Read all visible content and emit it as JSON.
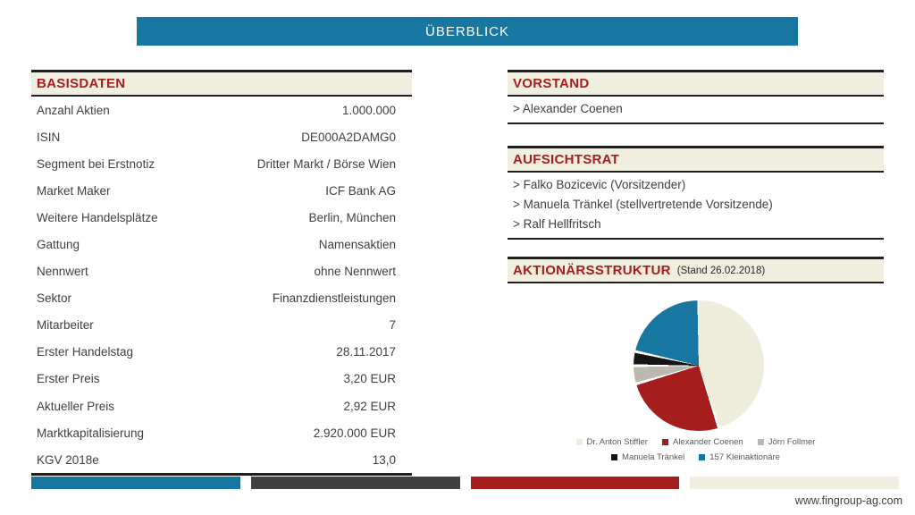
{
  "title": "ÜBERBLICK",
  "colors": {
    "teal": "#1777A0",
    "dark_red": "#A61D1E",
    "cream": "#F0EFDF",
    "dark_gray": "#404040",
    "border": "#1F1F1F",
    "body_text": "#3F3F3F"
  },
  "basisdaten": {
    "header": "BASISDATEN",
    "rows": [
      {
        "label": "Anzahl Aktien",
        "value": "1.000.000"
      },
      {
        "label": "ISIN",
        "value": "DE000A2DAMG0"
      },
      {
        "label": "Segment bei Erstnotiz",
        "value": "Dritter Markt / Börse Wien"
      },
      {
        "label": "Market Maker",
        "value": "ICF Bank AG"
      },
      {
        "label": "Weitere Handelsplätze",
        "value": "Berlin, München"
      },
      {
        "label": "Gattung",
        "value": "Namensaktien"
      },
      {
        "label": "Nennwert",
        "value": "ohne Nennwert"
      },
      {
        "label": "Sektor",
        "value": "Finanzdienstleistungen"
      },
      {
        "label": "Mitarbeiter",
        "value": "7"
      },
      {
        "label": "Erster Handelstag",
        "value": "28.11.2017"
      },
      {
        "label": "Erster Preis",
        "value": "3,20 EUR"
      },
      {
        "label": "Aktueller Preis",
        "value": "2,92 EUR"
      },
      {
        "label": "Marktkapitalisierung",
        "value": "2.920.000 EUR"
      },
      {
        "label": "KGV 2018e",
        "value": "13,0"
      }
    ]
  },
  "vorstand": {
    "header": "VORSTAND",
    "members": [
      "> Alexander Coenen"
    ]
  },
  "aufsichtsrat": {
    "header": "AUFSICHTSRAT",
    "members": [
      "> Falko Bozicevic (Vorsitzender)",
      "> Manuela Tränkel (stellvertretende Vorsitzende)",
      "> Ralf Hellfritsch"
    ]
  },
  "aktionaersstruktur": {
    "header": "AKTIONÄRSSTRUKTUR",
    "stand_note": "(Stand 26.02.2018)"
  },
  "chart_data": {
    "type": "pie",
    "title": "AKTIONÄRSSTRUKTUR (Stand 26.02.2018)",
    "start_angle_deg": 0,
    "direction": "clockwise",
    "note": "values in percent, estimated from slice angles (no labels shown in chart)",
    "slices": [
      {
        "label": "Dr. Anton Stiffler",
        "value": 45,
        "color": "#EEEDDB"
      },
      {
        "label": "Alexander Coenen",
        "value": 25.5,
        "color": "#A61D1E"
      },
      {
        "label": "Jörn Follmer",
        "value": 4.5,
        "color": "#BBB8AF"
      },
      {
        "label": "Manuela Tränkel",
        "value": 3.5,
        "color": "#141414"
      },
      {
        "label": "157 Kleinaktionäre",
        "value": 21.5,
        "color": "#1777A0"
      }
    ],
    "legend_position": "bottom"
  },
  "bottom_bars": [
    "#1777A0",
    "#404040",
    "#A61D1E",
    "#F0EFDF"
  ],
  "footer": {
    "website": "www.fingroup-ag.com"
  }
}
